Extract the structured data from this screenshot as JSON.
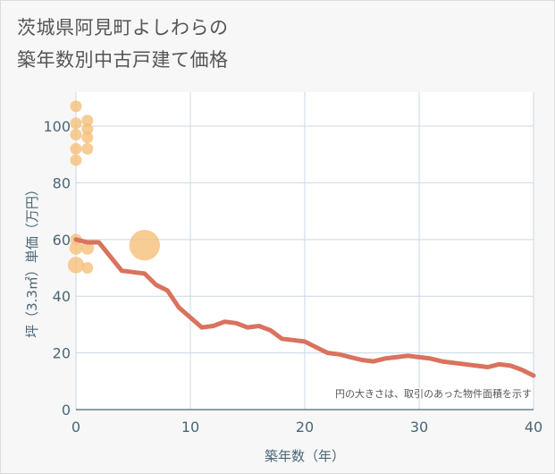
{
  "title_lines": [
    "茨城県阿見町よしわらの",
    "築年数別中古戸建て価格"
  ],
  "chart_data": {
    "type": "scatter+line",
    "title": "茨城県阿見町よしわらの築年数別中古戸建て価格",
    "xlabel": "築年数（年）",
    "ylabel": "坪（3.3㎡）単価（万円）",
    "xlim": [
      0,
      40
    ],
    "ylim": [
      0,
      112
    ],
    "xticks": [
      0,
      10,
      20,
      30,
      40
    ],
    "yticks": [
      0,
      20,
      40,
      60,
      80,
      100
    ],
    "note": "円の大きさは、取引のあった物件面積を示す",
    "colors": {
      "line": "#d9735e",
      "bubble": "#f5c07a",
      "grid": "#c8d8e4",
      "axis": "#4a6677"
    },
    "bubbles": [
      {
        "x": 0,
        "y": 107,
        "size": 1
      },
      {
        "x": 0,
        "y": 101,
        "size": 1
      },
      {
        "x": 0,
        "y": 97,
        "size": 1
      },
      {
        "x": 0,
        "y": 92,
        "size": 1
      },
      {
        "x": 0,
        "y": 88,
        "size": 1
      },
      {
        "x": 1,
        "y": 102,
        "size": 1
      },
      {
        "x": 1,
        "y": 99,
        "size": 1
      },
      {
        "x": 1,
        "y": 96,
        "size": 1
      },
      {
        "x": 1,
        "y": 92,
        "size": 1
      },
      {
        "x": 0,
        "y": 60,
        "size": 1
      },
      {
        "x": 0,
        "y": 57,
        "size": 1.3
      },
      {
        "x": 0,
        "y": 51,
        "size": 2
      },
      {
        "x": 1,
        "y": 57,
        "size": 1.3
      },
      {
        "x": 1,
        "y": 50,
        "size": 1
      },
      {
        "x": 6,
        "y": 58,
        "size": 7
      }
    ],
    "line": {
      "x": [
        0,
        1,
        2,
        3,
        4,
        5,
        6,
        7,
        8,
        9,
        10,
        11,
        12,
        13,
        14,
        15,
        16,
        17,
        18,
        19,
        20,
        21,
        22,
        23,
        24,
        25,
        26,
        27,
        28,
        29,
        30,
        31,
        32,
        33,
        34,
        35,
        36,
        37,
        38,
        39,
        40
      ],
      "y": [
        60,
        59,
        59,
        54,
        49,
        48.5,
        48,
        44,
        42,
        36,
        32.5,
        29,
        29.5,
        31,
        30.5,
        29,
        29.5,
        28,
        25,
        24.5,
        24,
        22,
        20,
        19.5,
        18.5,
        17.5,
        17,
        18,
        18.5,
        19,
        18.5,
        18,
        17,
        16.5,
        16,
        15.5,
        15,
        16,
        15.5,
        14,
        12
      ]
    }
  }
}
